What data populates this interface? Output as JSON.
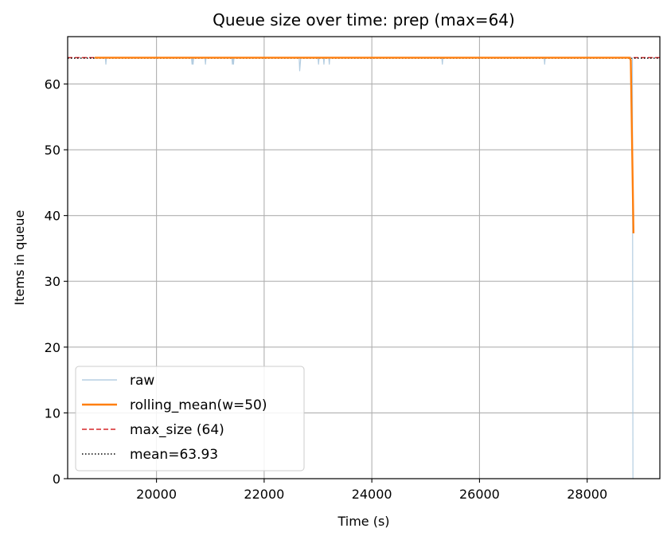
{
  "chart_data": {
    "type": "line",
    "title": "Queue size over time: prep (max=64)",
    "xlabel": "Time (s)",
    "ylabel": "Items in queue",
    "xlim": [
      18350,
      29350
    ],
    "ylim": [
      0,
      67.2
    ],
    "x_ticks": [
      20000,
      22000,
      24000,
      26000,
      28000
    ],
    "y_ticks": [
      0,
      10,
      20,
      30,
      40,
      50,
      60
    ],
    "grid": true,
    "legend_position": "lower-left",
    "series": [
      {
        "name": "raw",
        "color": "#a6c4dc",
        "x": [
          18850,
          19050,
          19060,
          19070,
          20650,
          20660,
          20670,
          20680,
          20690,
          20700,
          20900,
          20910,
          20920,
          21400,
          21410,
          21420,
          21430,
          21440,
          21450,
          22650,
          22660,
          22670,
          22680,
          23000,
          23010,
          23020,
          23100,
          23110,
          23120,
          23200,
          23210,
          23220,
          25300,
          25310,
          25320,
          27200,
          27210,
          27220,
          28840,
          28850,
          28860
        ],
        "y": [
          64,
          64,
          63,
          64,
          64,
          63,
          64,
          63,
          64,
          64,
          64,
          63,
          64,
          64,
          63,
          64,
          63,
          64,
          64,
          64,
          62,
          63,
          64,
          64,
          63,
          64,
          64,
          63,
          64,
          64,
          63,
          64,
          64,
          63,
          64,
          64,
          63,
          64,
          64,
          0,
          0
        ]
      },
      {
        "name": "rolling_mean(w=50)",
        "color": "#ff7f0e",
        "x": [
          18850,
          28790,
          28810,
          28860
        ],
        "y": [
          64,
          64,
          63.6,
          37.3
        ]
      }
    ],
    "reference_lines": [
      {
        "name": "max_size (64)",
        "y": 64,
        "color": "#d62728",
        "style": "dashed"
      },
      {
        "name": "mean=63.93",
        "y": 63.93,
        "color": "#000000",
        "style": "dotted"
      }
    ]
  }
}
